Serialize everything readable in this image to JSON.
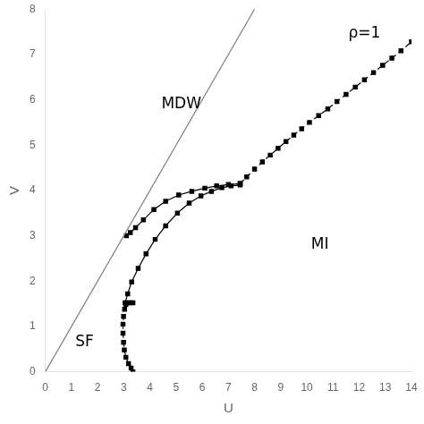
{
  "chart_data": {
    "type": "line",
    "xlabel": "U",
    "ylabel": "V",
    "xlim": [
      0,
      14
    ],
    "ylim": [
      0,
      8
    ],
    "xticks": [
      0,
      1,
      2,
      3,
      4,
      5,
      6,
      7,
      8,
      9,
      10,
      11,
      12,
      13,
      14
    ],
    "yticks": [
      0,
      1,
      2,
      3,
      4,
      5,
      6,
      7,
      8
    ],
    "grid": false,
    "series": [
      {
        "color": "gray",
        "line_style": "solid",
        "marker": "none",
        "x": [
          0,
          8
        ],
        "values": [
          0,
          8
        ]
      },
      {
        "color": "black",
        "line_style": "dashed",
        "marker": "square",
        "x": [
          3.35,
          3.28,
          3.18,
          3.08,
          3.02,
          2.99,
          2.97,
          2.97,
          2.99,
          3.03,
          3.08,
          3.15,
          3.25,
          3.35
        ],
        "values": [
          0.0,
          0.08,
          0.18,
          0.32,
          0.48,
          0.65,
          0.85,
          1.05,
          1.22,
          1.38,
          1.48,
          1.52,
          1.52,
          1.52
        ]
      },
      {
        "color": "black",
        "line_style": "solid",
        "marker": "square",
        "x": [
          3.05,
          3.15,
          3.3,
          3.55,
          3.85,
          4.2,
          4.6,
          5.05,
          5.5,
          5.95,
          6.35,
          6.75,
          7.1,
          7.45
        ],
        "values": [
          1.52,
          1.72,
          1.98,
          2.28,
          2.6,
          2.92,
          3.22,
          3.5,
          3.72,
          3.88,
          3.98,
          4.06,
          4.1,
          4.12
        ]
      },
      {
        "color": "black",
        "line_style": "solid",
        "marker": "square",
        "x": [
          3.1,
          3.25,
          3.45,
          3.75,
          4.15,
          4.6,
          5.1,
          5.6,
          6.1,
          6.55,
          7.0,
          7.45
        ],
        "values": [
          3.0,
          3.07,
          3.18,
          3.35,
          3.58,
          3.76,
          3.9,
          3.98,
          4.05,
          4.1,
          4.13,
          4.15
        ]
      },
      {
        "color": "black",
        "line_style": "dashed",
        "marker": "square",
        "x": [
          7.45,
          7.7,
          8.0,
          8.3,
          8.6,
          8.9,
          9.2,
          9.5,
          9.8,
          10.1,
          10.45,
          10.8,
          11.15,
          11.5,
          11.85,
          12.2,
          12.55,
          12.9,
          13.25,
          13.6,
          14.0
        ],
        "values": [
          4.15,
          4.3,
          4.47,
          4.63,
          4.78,
          4.93,
          5.08,
          5.22,
          5.36,
          5.5,
          5.65,
          5.8,
          5.96,
          6.12,
          6.28,
          6.44,
          6.6,
          6.76,
          6.92,
          7.08,
          7.28
        ]
      }
    ],
    "annotations": [
      {
        "text": "SF",
        "x": 1.5,
        "y": 0.65
      },
      {
        "text": "MI",
        "x": 10.5,
        "y": 2.8
      },
      {
        "text": "MDW",
        "x": 5.2,
        "y": 5.9
      },
      {
        "text": "ρ=1",
        "x": 12.2,
        "y": 7.45
      }
    ]
  }
}
